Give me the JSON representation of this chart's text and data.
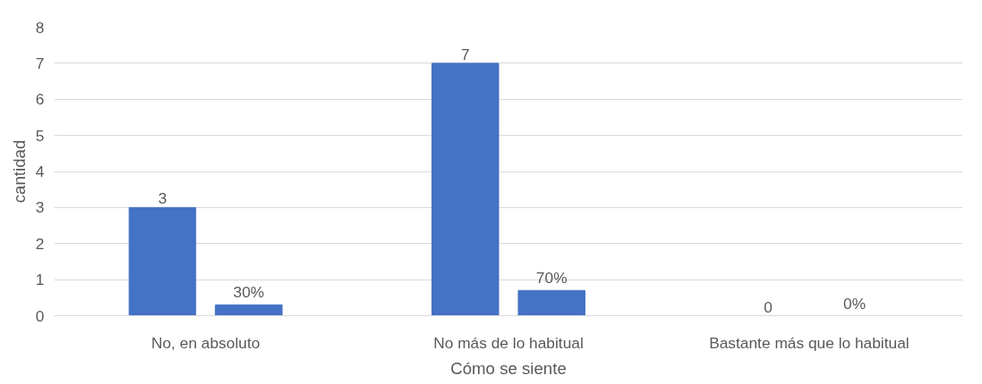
{
  "chart_data": {
    "type": "bar",
    "xlabel": "Cómo se siente",
    "ylabel": "cantidad",
    "categories": [
      "No, en absoluto",
      "No más de lo habitual",
      "Bastante más que lo  habitual"
    ],
    "series": [
      {
        "color": "#4472c4",
        "values": [
          3,
          7,
          0
        ],
        "value_labels": [
          "3",
          "7",
          "0"
        ]
      },
      {
        "color": "#4472c4",
        "values": [
          0.3,
          0.7,
          0
        ],
        "value_labels": [
          "30%",
          "70%",
          "0%"
        ]
      }
    ],
    "ylim": [
      0,
      8
    ],
    "yticks": [
      0,
      1,
      2,
      3,
      4,
      5,
      6,
      7,
      8
    ],
    "grid": "y"
  }
}
